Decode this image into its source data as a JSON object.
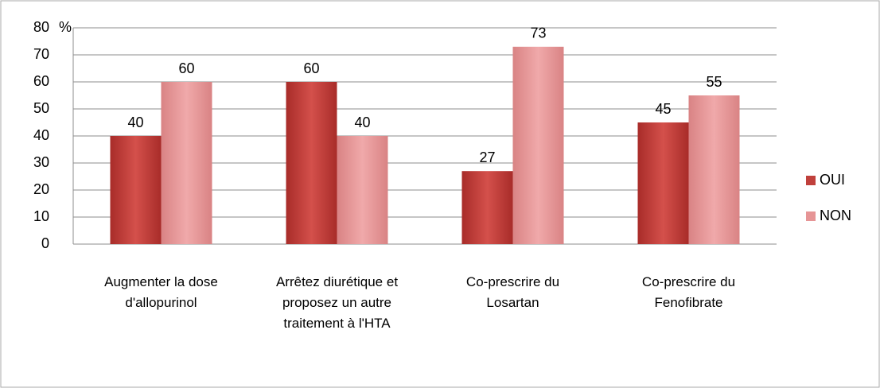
{
  "chart_data": {
    "type": "bar",
    "y_label": "%",
    "categories": [
      "Augmenter la dose d'allopurinol",
      "Arrêtez diurétique et proposez un autre traitement à l'HTA",
      "Co-prescrire du Losartan",
      "Co-prescrire du Fenofibrate"
    ],
    "series": [
      {
        "name": "OUI",
        "color": "#c0403c",
        "values": [
          40,
          60,
          27,
          45
        ]
      },
      {
        "name": "NON",
        "color": "#e69596",
        "values": [
          60,
          40,
          73,
          55
        ]
      }
    ],
    "ylim": [
      0,
      80
    ],
    "yticks": [
      0,
      10,
      20,
      30,
      40,
      50,
      60,
      70,
      80
    ],
    "grid": true,
    "legend": "right"
  }
}
